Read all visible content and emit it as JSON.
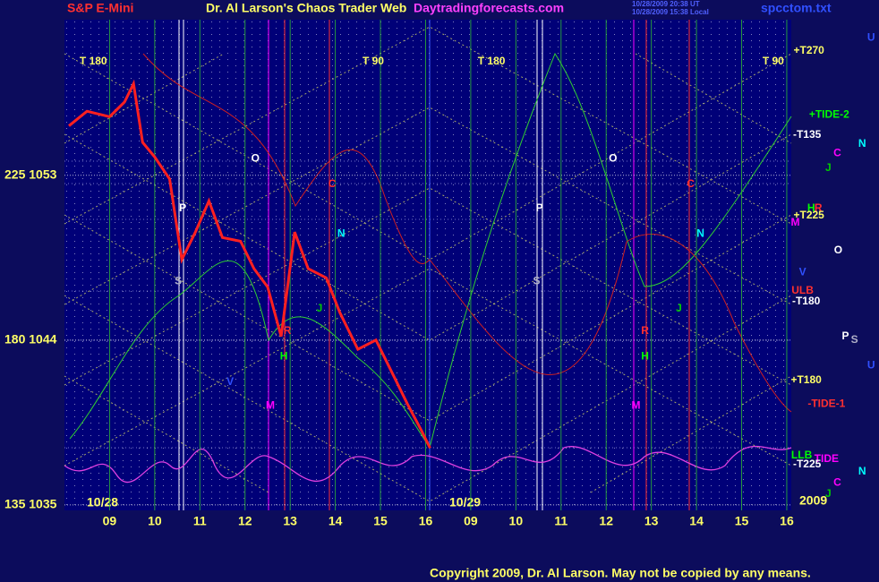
{
  "chart_data": {
    "type": "line",
    "symbol": "S&P E-Mini",
    "title": "Dr. Al Larson's Chaos Trader Web",
    "site": "Daytradingforecasts.com",
    "timestamp_ut": "10/28/2009 20:38 UT",
    "timestamp_local": "10/28/2009 15:38 Local",
    "file": "spcctom.txt",
    "date_labels": [
      "10/28",
      "10/29"
    ],
    "year": "2009",
    "copyright": "Copyright 2009, Dr. Al Larson. May not be copied by any means.",
    "color": "#ff2020",
    "x": [
      8.1,
      8.5,
      9.0,
      9.33,
      9.53,
      9.73,
      10.0,
      10.33,
      10.6,
      10.9,
      11.2,
      11.5,
      11.9,
      12.2,
      12.5,
      12.8,
      13.1,
      13.4,
      13.8,
      14.1,
      14.5,
      14.9,
      15.3,
      15.6,
      15.9,
      16.1
    ],
    "values": [
      1055.7,
      1056.5,
      1056.2,
      1057.0,
      1058.0,
      1054.8,
      1054.0,
      1052.8,
      1048.4,
      1049.9,
      1051.6,
      1049.6,
      1049.4,
      1047.9,
      1046.9,
      1044.2,
      1049.9,
      1047.9,
      1047.4,
      1045.5,
      1043.5,
      1044.0,
      1042.0,
      1040.5,
      1039.1,
      1038.1
    ],
    "xlim": [
      8,
      24.1
    ],
    "xticks": [
      {
        "value": 9,
        "label": "09"
      },
      10,
      11,
      12,
      13,
      14,
      15,
      16,
      {
        "value": 17,
        "label": "09"
      },
      {
        "value": 18,
        "label": "10"
      },
      {
        "value": 19,
        "label": "11"
      },
      {
        "value": 20,
        "label": "12"
      },
      {
        "value": 21,
        "label": "13"
      },
      {
        "value": 22,
        "label": "14"
      },
      {
        "value": 23,
        "label": "15"
      },
      {
        "value": 24,
        "label": "16"
      }
    ],
    "ylim": [
      1034.7,
      1061.5
    ],
    "yticks": [
      {
        "value": 1035,
        "label": "135 1035"
      },
      {
        "value": 1044,
        "label": "180 1044"
      },
      {
        "value": 1053,
        "label": "225 1053"
      }
    ],
    "grid": true,
    "annotations": [
      {
        "text": "T 180",
        "x": 8.64,
        "y": 1059.2,
        "color": "#ffff66"
      },
      {
        "text": "T 90",
        "x": 14.84,
        "y": 1059.2,
        "color": "#ffff66"
      },
      {
        "text": "T 180",
        "x": 17.46,
        "y": 1059.2,
        "color": "#ffff66"
      },
      {
        "text": "T 90",
        "x": 23.7,
        "y": 1059.2,
        "color": "#ffff66"
      },
      {
        "text": "O",
        "x": 12.23,
        "y": 1053.9,
        "color": "#ffffff"
      },
      {
        "text": "O",
        "x": 20.15,
        "y": 1053.9,
        "color": "#ffffff"
      },
      {
        "text": "P",
        "x": 10.62,
        "y": 1051.2,
        "color": "#ffffff"
      },
      {
        "text": "P",
        "x": 18.52,
        "y": 1051.2,
        "color": "#ffffff"
      },
      {
        "text": "S",
        "x": 10.52,
        "y": 1047.2,
        "color": "#b0b0c8"
      },
      {
        "text": "S",
        "x": 18.46,
        "y": 1047.2,
        "color": "#b0b0c8"
      },
      {
        "text": "C",
        "x": 13.93,
        "y": 1052.5,
        "color": "#ff3030"
      },
      {
        "text": "C",
        "x": 21.87,
        "y": 1052.5,
        "color": "#ff3030"
      },
      {
        "text": "N",
        "x": 14.13,
        "y": 1049.8,
        "color": "#00ffff"
      },
      {
        "text": "N",
        "x": 22.09,
        "y": 1049.8,
        "color": "#00ffff"
      },
      {
        "text": "J",
        "x": 13.65,
        "y": 1045.7,
        "color": "#00cc00"
      },
      {
        "text": "J",
        "x": 21.61,
        "y": 1045.7,
        "color": "#00cc00"
      },
      {
        "text": "R",
        "x": 12.94,
        "y": 1044.5,
        "color": "#ff3030"
      },
      {
        "text": "R",
        "x": 20.86,
        "y": 1044.5,
        "color": "#ff3030"
      },
      {
        "text": "H",
        "x": 12.86,
        "y": 1043.1,
        "color": "#00ff00"
      },
      {
        "text": "H",
        "x": 20.86,
        "y": 1043.1,
        "color": "#00ff00"
      },
      {
        "text": "M",
        "x": 12.56,
        "y": 1040.4,
        "color": "#ff00ff"
      },
      {
        "text": "M",
        "x": 20.66,
        "y": 1040.4,
        "color": "#ff00ff"
      },
      {
        "text": "V",
        "x": 11.67,
        "y": 1041.7,
        "color": "#3050ff"
      },
      {
        "text": "+T270",
        "x": 24.49,
        "y": 1059.8,
        "color": "#ffff66"
      },
      {
        "text": "+TIDE-2",
        "x": 24.94,
        "y": 1056.3,
        "color": "#00ff00"
      },
      {
        "text": "-T135",
        "x": 24.45,
        "y": 1055.2,
        "color": "#ffffff"
      },
      {
        "text": "C",
        "x": 25.12,
        "y": 1054.2,
        "color": "#ff00ff"
      },
      {
        "text": "N",
        "x": 25.67,
        "y": 1054.7,
        "color": "#00ffff"
      },
      {
        "text": "J",
        "x": 24.92,
        "y": 1053.4,
        "color": "#00cc00"
      },
      {
        "text": "H",
        "x": 24.54,
        "y": 1051.2,
        "color": "#00ff00"
      },
      {
        "text": "R",
        "x": 24.7,
        "y": 1051.2,
        "color": "#ff3030"
      },
      {
        "text": "+T225",
        "x": 24.49,
        "y": 1050.8,
        "color": "#ffff66"
      },
      {
        "text": "M",
        "x": 24.19,
        "y": 1050.4,
        "color": "#ff00ff"
      },
      {
        "text": "O",
        "x": 25.14,
        "y": 1048.9,
        "color": "#ffffff"
      },
      {
        "text": "V",
        "x": 24.35,
        "y": 1047.7,
        "color": "#3050ff"
      },
      {
        "text": "ULB",
        "x": 24.35,
        "y": 1046.7,
        "color": "#ff3030"
      },
      {
        "text": "-T180",
        "x": 24.43,
        "y": 1046.1,
        "color": "#ffffff"
      },
      {
        "text": "P",
        "x": 25.3,
        "y": 1044.2,
        "color": "#ffffff"
      },
      {
        "text": "S",
        "x": 25.5,
        "y": 1044.0,
        "color": "#b0b0c8"
      },
      {
        "text": "U",
        "x": 25.87,
        "y": 1060.5,
        "color": "#3050ff"
      },
      {
        "text": "U",
        "x": 25.87,
        "y": 1042.6,
        "color": "#3050ff"
      },
      {
        "text": "+T180",
        "x": 24.43,
        "y": 1041.8,
        "color": "#ffff66"
      },
      {
        "text": "-TIDE-1",
        "x": 24.88,
        "y": 1040.5,
        "color": "#ff3030"
      },
      {
        "text": "LLB",
        "x": 24.33,
        "y": 1037.7,
        "color": "#00ff00"
      },
      {
        "text": "TIDE",
        "x": 24.88,
        "y": 1037.5,
        "color": "#ff00ff"
      },
      {
        "text": "-T225",
        "x": 24.45,
        "y": 1037.2,
        "color": "#ffffff"
      },
      {
        "text": "N",
        "x": 25.67,
        "y": 1036.8,
        "color": "#00ffff"
      },
      {
        "text": "C",
        "x": 25.12,
        "y": 1036.2,
        "color": "#ff00ff"
      },
      {
        "text": "J",
        "x": 24.92,
        "y": 1035.6,
        "color": "#00cc00"
      }
    ]
  }
}
